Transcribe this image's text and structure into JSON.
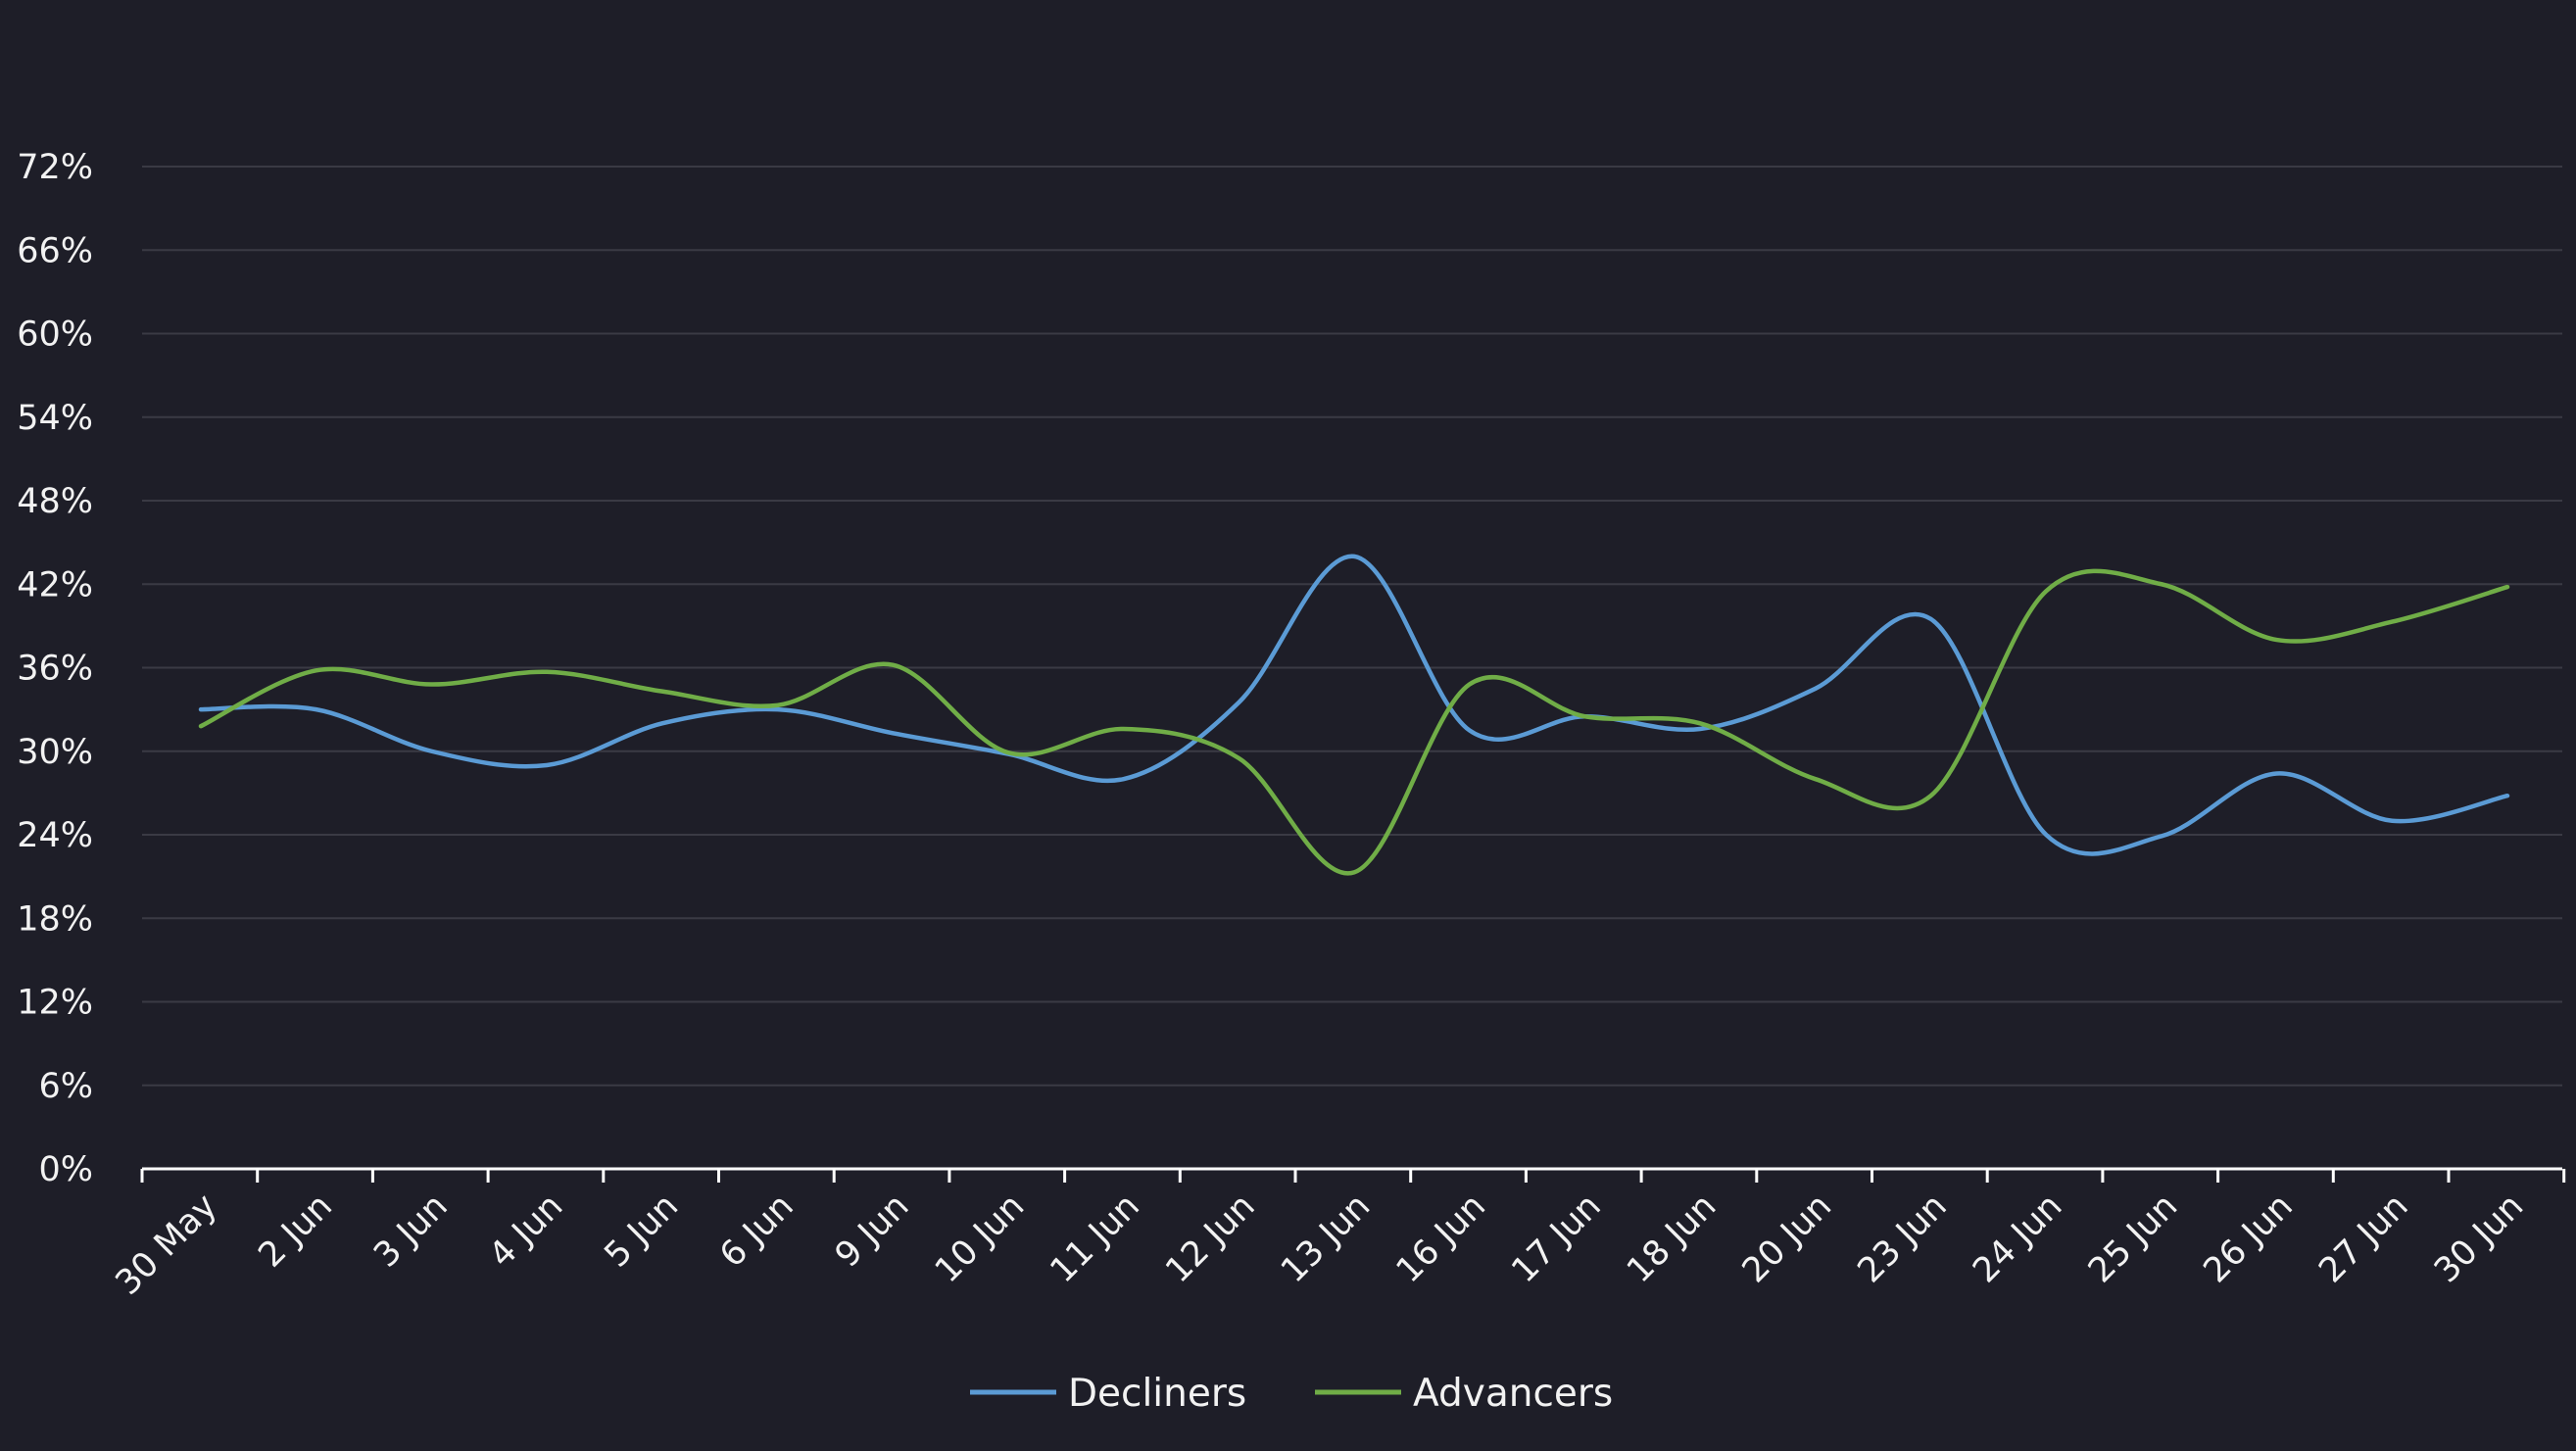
{
  "colors": {
    "background": "#1e1e28",
    "grid": "#3a3a44",
    "axis": "#ffffff",
    "text": "#f2f2f2"
  },
  "chart_data": {
    "type": "line",
    "title": "",
    "xlabel": "",
    "ylabel": "",
    "categories": [
      "30 May",
      "2 Jun",
      "3 Jun",
      "4 Jun",
      "5 Jun",
      "6 Jun",
      "9 Jun",
      "10 Jun",
      "11 Jun",
      "12 Jun",
      "13 Jun",
      "16 Jun",
      "17 Jun",
      "18 Jun",
      "20 Jun",
      "23 Jun",
      "24 Jun",
      "25 Jun",
      "26 Jun",
      "27 Jun",
      "30 Jun"
    ],
    "ylim": [
      0,
      72
    ],
    "yticks": [
      0,
      6,
      12,
      18,
      24,
      30,
      36,
      42,
      48,
      54,
      60,
      66,
      72
    ],
    "ytick_suffix": "%",
    "grid": true,
    "legend_position": "bottom-center",
    "series": [
      {
        "name": "Decliners",
        "color": "#5b9bd5",
        "values": [
          33.0,
          33.0,
          30.0,
          29.0,
          32.0,
          33.0,
          31.3,
          29.8,
          28.0,
          33.5,
          44.0,
          31.5,
          32.5,
          31.6,
          34.5,
          39.5,
          24.0,
          23.9,
          28.4,
          25.0,
          26.8
        ]
      },
      {
        "name": "Advancers",
        "color": "#70ad47",
        "values": [
          31.8,
          35.8,
          34.8,
          35.7,
          34.3,
          33.3,
          36.2,
          29.9,
          31.6,
          29.5,
          21.3,
          34.8,
          32.5,
          32.0,
          28.0,
          26.8,
          41.5,
          42.0,
          38.0,
          39.3,
          41.8
        ]
      }
    ]
  }
}
